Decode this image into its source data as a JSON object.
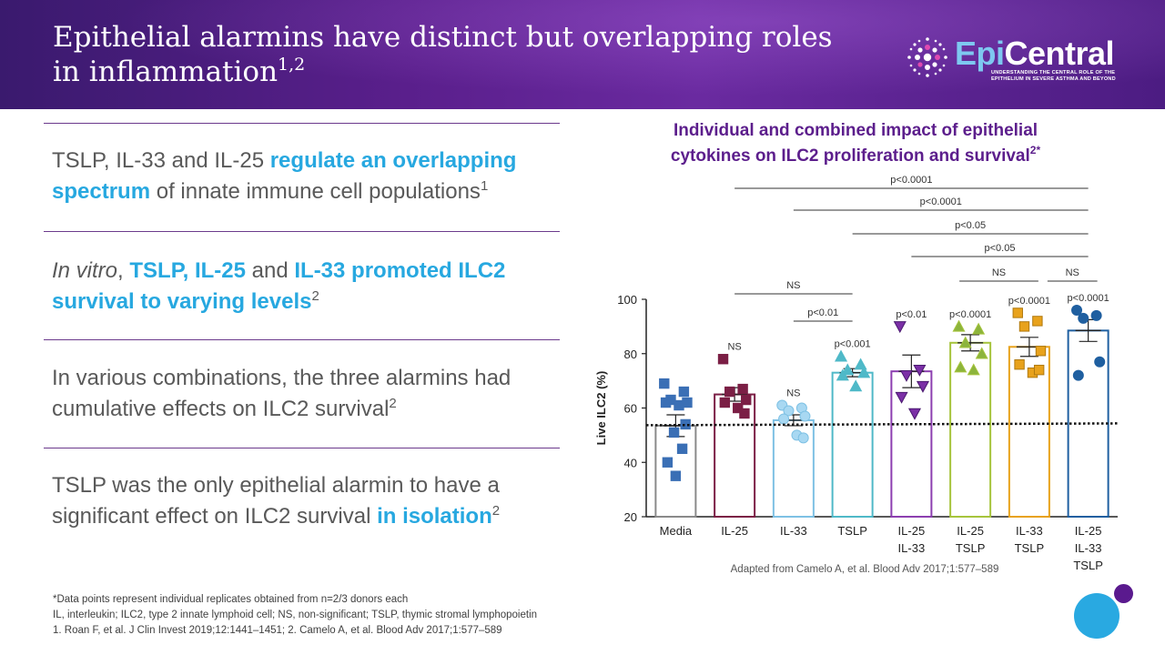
{
  "header": {
    "title_line1": "Epithelial alarmins have distinct but overlapping roles",
    "title_line2": "in inflammation",
    "title_sup": "1,2",
    "logo_epi": "Epi",
    "logo_central": "Central",
    "logo_tagline_1": "UNDERSTANDING THE CENTRAL ROLE OF THE",
    "logo_tagline_2": "EPITHELIUM IN SEVERE ASTHMA AND BEYOND"
  },
  "points": [
    {
      "t1": "TSLP, IL-33 and IL-25 ",
      "h1": "regulate an overlapping spectrum",
      "t2": " of innate immune cell populations",
      "sup": "1"
    },
    {
      "e1": "In vitro",
      "t1": ", ",
      "h1": "TSLP, IL-25",
      "t2": " and ",
      "h2": "IL-33 promoted ILC2 survival to varying levels",
      "sup": "2"
    },
    {
      "t1": "In various combinations, the three alarmins had cumulative effects on ILC2 survival",
      "sup": "2"
    },
    {
      "t1": "TSLP was the only epithelial alarmin to have a significant effect on ILC2 survival ",
      "h1": "in isolation",
      "sup": "2"
    }
  ],
  "chart_title_1": "Individual and combined impact of epithelial",
  "chart_title_2": "cytokines on ILC2 proliferation and survival",
  "chart_title_sup": "2*",
  "source_note": "Adapted from Camelo A, et al. Blood Adv 2017;1:577–589",
  "chart_data": {
    "type": "bar",
    "ylabel": "Live ILC2 (%)",
    "ylim": [
      20,
      100
    ],
    "yticks": [
      20,
      40,
      60,
      80,
      100
    ],
    "baseline": 54,
    "categories": [
      {
        "lines": [
          "Media"
        ],
        "mean": 53.5,
        "err": 4,
        "color": "#8a8a8a",
        "marker": "square",
        "marker_color": "#3a6fb5",
        "pts": [
          69,
          66,
          63,
          62,
          62,
          61,
          54,
          51,
          45,
          40,
          35
        ],
        "label": ""
      },
      {
        "lines": [
          "IL-25"
        ],
        "mean": 65,
        "err": 2.5,
        "color": "#7b1f45",
        "marker": "square",
        "marker_color": "#7b1f45",
        "pts": [
          78,
          67,
          66,
          63,
          62,
          60,
          58
        ],
        "label": "NS"
      },
      {
        "lines": [
          "IL-33"
        ],
        "mean": 55.5,
        "err": 2,
        "color": "#7ec1e4",
        "marker": "circle",
        "marker_color": "#a8d8f2",
        "pts": [
          61,
          60,
          59,
          57,
          56,
          50,
          49
        ],
        "label": "NS"
      },
      {
        "lines": [
          "TSLP"
        ],
        "mean": 73,
        "err": 1.5,
        "color": "#4fb9c8",
        "marker": "triangle-up",
        "marker_color": "#4fb9c8",
        "pts": [
          79,
          76,
          74,
          73,
          72,
          68
        ],
        "label": "p<0.001"
      },
      {
        "lines": [
          "IL-25",
          "IL-33"
        ],
        "mean": 73.5,
        "err": 6,
        "color": "#8c3fb0",
        "marker": "triangle-down",
        "marker_color": "#7b2fa6",
        "pts": [
          90,
          74,
          72,
          68,
          64,
          58
        ],
        "label": "p<0.01"
      },
      {
        "lines": [
          "IL-25",
          "TSLP"
        ],
        "mean": 84,
        "err": 3,
        "color": "#a6c43c",
        "marker": "triangle-up",
        "marker_color": "#8cb43c",
        "pts": [
          90,
          89,
          84,
          80,
          75,
          74
        ],
        "label": "p<0.0001"
      },
      {
        "lines": [
          "IL-33",
          "TSLP"
        ],
        "mean": 82.5,
        "err": 3.5,
        "color": "#e8a21c",
        "marker": "square",
        "marker_color": "#e8a21c",
        "pts": [
          95,
          92,
          90,
          81,
          76,
          73,
          74
        ],
        "label": "p<0.0001"
      },
      {
        "lines": [
          "IL-25",
          "IL-33",
          "TSLP"
        ],
        "mean": 88.5,
        "err": 4,
        "color": "#1f5fa0",
        "marker": "circle",
        "marker_color": "#1f5fa0",
        "pts": [
          96,
          94,
          93,
          77,
          72
        ],
        "label": "p<0.0001"
      }
    ],
    "brackets": [
      {
        "from": 1,
        "to": 7,
        "label": "p<0.0001"
      },
      {
        "from": 2,
        "to": 7,
        "label": "p<0.0001"
      },
      {
        "from": 3,
        "to": 7,
        "label": "p<0.05"
      },
      {
        "from": 4,
        "to": 7,
        "label": "p<0.05"
      },
      {
        "from": 5,
        "to": 6,
        "label": "NS"
      },
      {
        "from": 6,
        "to": 7,
        "label": "NS"
      },
      {
        "from": 1,
        "to": 3,
        "label": "NS"
      },
      {
        "from": 2,
        "to": 3,
        "label": "p<0.01"
      }
    ]
  },
  "footnotes": [
    "*Data points represent individual replicates obtained from n=2/3 donors each",
    "IL, interleukin; ILC2, type 2 innate lymphoid cell; NS, non-significant; TSLP, thymic stromal lymphopoietin",
    "1. Roan F, et al. J Clin Invest 2019;12:1441–1451;  2. Camelo A, et al. Blood Adv 2017;1:577–589"
  ]
}
